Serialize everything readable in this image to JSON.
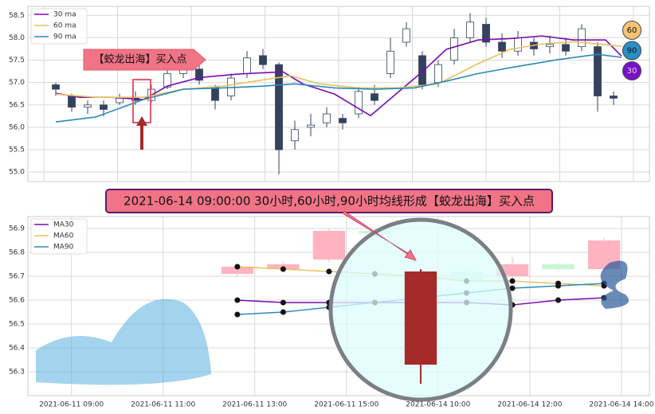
{
  "chart_data": [
    {
      "type": "candlestick",
      "x": [
        0,
        1,
        2,
        3,
        4,
        5,
        6,
        7,
        8,
        9,
        10,
        11,
        12,
        13,
        14,
        15,
        16,
        17,
        18,
        19,
        20,
        21,
        22,
        23,
        24,
        25,
        26,
        27,
        28,
        29,
        30,
        31,
        32,
        33,
        34,
        35
      ],
      "open": [
        56.95,
        56.7,
        56.45,
        56.5,
        56.55,
        56.65,
        56.6,
        56.9,
        57.2,
        57.3,
        56.9,
        56.7,
        57.2,
        57.6,
        57.4,
        55.7,
        56.0,
        56.1,
        56.2,
        56.3,
        56.75,
        57.2,
        57.9,
        57.6,
        57.0,
        57.5,
        58.0,
        58.3,
        57.9,
        57.7,
        57.9,
        57.8,
        57.85,
        57.8,
        57.8,
        56.7
      ],
      "close": [
        56.85,
        56.45,
        56.5,
        56.4,
        56.65,
        56.6,
        56.85,
        57.2,
        57.35,
        57.05,
        56.6,
        57.1,
        57.55,
        57.4,
        55.5,
        55.95,
        56.05,
        56.3,
        56.1,
        56.8,
        56.6,
        57.7,
        58.2,
        56.95,
        57.4,
        58.0,
        58.35,
        57.9,
        57.7,
        58.0,
        57.75,
        57.85,
        57.7,
        58.2,
        56.7,
        56.65
      ],
      "high": [
        57.0,
        56.75,
        56.6,
        56.6,
        56.75,
        56.8,
        56.95,
        57.3,
        57.55,
        57.4,
        56.95,
        57.2,
        57.7,
        57.75,
        57.45,
        56.15,
        56.3,
        56.45,
        56.3,
        56.9,
        56.95,
        58.0,
        58.35,
        57.7,
        57.5,
        58.2,
        58.55,
        58.45,
        58.1,
        58.15,
        58.0,
        58.05,
        58.0,
        58.3,
        57.9,
        56.8
      ],
      "low": [
        56.7,
        56.35,
        56.3,
        56.25,
        56.5,
        56.5,
        56.55,
        56.85,
        57.1,
        56.95,
        56.4,
        56.6,
        57.1,
        57.3,
        54.95,
        55.5,
        55.8,
        56.0,
        55.95,
        56.2,
        56.5,
        57.1,
        57.8,
        56.85,
        56.9,
        57.4,
        57.9,
        57.8,
        57.55,
        57.6,
        57.6,
        57.65,
        57.6,
        57.7,
        56.35,
        56.5
      ],
      "up_color": "#ffffff",
      "down_color": "#34425e",
      "wick_color": "#34425e",
      "series": [
        {
          "name": "30 ma",
          "color": "#7a0bb0",
          "x": [
            0,
            1.5,
            3.5,
            5.5,
            7,
            9,
            11.5,
            14.25,
            15.5,
            17.5,
            19.75,
            21.5,
            23,
            24.5,
            26.5,
            28.5,
            30.5,
            32.5,
            34.5,
            35.5
          ],
          "values": [
            56.76,
            56.67,
            56.67,
            56.62,
            56.92,
            57.11,
            57.19,
            57.24,
            56.97,
            56.74,
            56.26,
            56.79,
            57.24,
            57.74,
            57.95,
            57.98,
            58.04,
            57.95,
            57.95,
            57.59
          ]
        },
        {
          "name": "60 ma",
          "color": "#e8c060",
          "x": [
            0,
            2.5,
            5.5,
            8,
            10.5,
            13,
            14.75,
            16.5,
            19,
            21.5,
            24,
            26.5,
            28.5,
            30.5,
            32.5,
            35.5
          ],
          "values": [
            56.74,
            56.67,
            56.67,
            56.85,
            56.92,
            57.06,
            57.15,
            56.97,
            56.88,
            56.88,
            56.97,
            57.42,
            57.74,
            57.86,
            57.91,
            57.81
          ]
        },
        {
          "name": "90 ma",
          "color": "#2a8ab8",
          "x": [
            0,
            2.5,
            5.5,
            8,
            10.5,
            13,
            15,
            17.5,
            20,
            22.5,
            24.5,
            26.5,
            28.5,
            31.5,
            34,
            35.5
          ],
          "values": [
            56.12,
            56.23,
            56.62,
            56.85,
            56.88,
            56.92,
            56.97,
            56.88,
            56.85,
            56.88,
            57.03,
            57.2,
            57.33,
            57.51,
            57.63,
            57.56
          ]
        }
      ],
      "xlim": [
        -1.75,
        37.25
      ],
      "ylim": [
        54.79,
        58.7
      ],
      "yticks": [
        {
          "value": 55,
          "label": "55.0"
        },
        55.5,
        {
          "value": 56,
          "label": "56.0"
        },
        56.5,
        {
          "value": 57,
          "label": "57.0"
        },
        57.5,
        {
          "value": 58,
          "label": "58.0"
        },
        58.5
      ],
      "grid": true,
      "legend": "upper left",
      "annotation": "【蛟龙出海】买入点",
      "badges": [
        {
          "label": "60",
          "color": "#f5c373"
        },
        {
          "label": "90",
          "color": "#2a8fc4"
        },
        {
          "label": "30",
          "color": "#7a10c8"
        }
      ]
    },
    {
      "type": "candlestick",
      "x": [
        0,
        1,
        2,
        3,
        4,
        5,
        6,
        7,
        8
      ],
      "open": [
        56.74,
        56.73,
        56.89,
        56.88,
        56.72,
        56.68,
        56.75,
        56.73,
        56.85
      ],
      "close": [
        56.71,
        56.75,
        56.77,
        56.89,
        56.33,
        56.72,
        56.7,
        56.75,
        56.73
      ],
      "high": [
        56.75,
        56.76,
        56.9,
        56.9,
        56.73,
        56.74,
        56.78,
        56.76,
        56.86
      ],
      "low": [
        56.7,
        56.72,
        56.76,
        56.87,
        56.25,
        56.66,
        56.68,
        56.72,
        56.72
      ],
      "colors": [
        "#ffb3c1",
        "#ffb3c1",
        "#ffb3c1",
        "#c8f5d2",
        "#a52a2a",
        "#d8f8e0",
        "#ffb3c1",
        "#c8f5d2",
        "#ffb3c1"
      ],
      "series": [
        {
          "name": "MA30",
          "color": "#7a0bb0",
          "values": [
            56.6,
            56.59,
            56.59,
            56.59,
            56.59,
            56.59,
            56.58,
            56.6,
            56.61
          ]
        },
        {
          "name": "MA60",
          "color": "#e8c060",
          "values": [
            56.74,
            56.73,
            56.72,
            56.71,
            56.7,
            56.68,
            56.68,
            56.67,
            56.66
          ]
        },
        {
          "name": "MA90",
          "color": "#2a8ab8",
          "values": [
            56.54,
            56.55,
            56.57,
            56.59,
            56.61,
            56.63,
            56.65,
            56.66,
            56.67
          ]
        }
      ],
      "xlim": [
        -4.57,
        8.99
      ],
      "ylim": [
        56.2,
        56.95
      ],
      "xticks": [
        {
          "value": -3.62,
          "label": "2021-06-11 09:00"
        },
        {
          "value": -1.62,
          "label": "2021-06-11 11:00"
        },
        {
          "value": 0.38,
          "label": "2021-06-11 13:00"
        },
        {
          "value": 2.38,
          "label": "2021-06-11 15:00"
        },
        {
          "value": 4.38,
          "label": "2021-06-14 10:00"
        },
        {
          "value": 6.38,
          "label": "2021-06-14 12:00"
        },
        {
          "value": 8.38,
          "label": "2021-06-14 14:00"
        }
      ],
      "yticks": [
        56.3,
        56.4,
        56.5,
        56.6,
        56.7,
        56.8,
        56.9
      ],
      "grid": true,
      "legend": "upper left",
      "annotation": "2021-06-14 09:00:00 30小时,60小时,90小时均线形成【蛟龙出海】买入点"
    }
  ]
}
